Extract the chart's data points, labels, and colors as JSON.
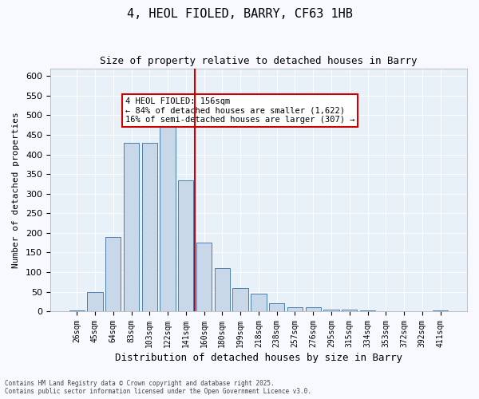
{
  "title": "4, HEOL FIOLED, BARRY, CF63 1HB",
  "subtitle": "Size of property relative to detached houses in Barry",
  "xlabel": "Distribution of detached houses by size in Barry",
  "ylabel": "Number of detached properties",
  "bar_color": "#c8d8e8",
  "bar_edge_color": "#4a7fb0",
  "vline_color": "#cc0000",
  "vline_x": 8,
  "categories": [
    "26sqm",
    "45sqm",
    "64sqm",
    "83sqm",
    "103sqm",
    "122sqm",
    "141sqm",
    "160sqm",
    "180sqm",
    "199sqm",
    "218sqm",
    "238sqm",
    "257sqm",
    "276sqm",
    "295sqm",
    "315sqm",
    "334sqm",
    "353sqm",
    "372sqm",
    "392sqm",
    "411sqm"
  ],
  "values": [
    3,
    50,
    190,
    430,
    430,
    480,
    335,
    175,
    110,
    60,
    45,
    20,
    10,
    10,
    5,
    4,
    2,
    1,
    1,
    0,
    3
  ],
  "annotation_title": "4 HEOL FIOLED: 156sqm",
  "annotation_line1": "← 84% of detached houses are smaller (1,622)",
  "annotation_line2": "16% of semi-detached houses are larger (307) →",
  "annotation_box_color": "#ffffff",
  "annotation_box_edge": "#cc0000",
  "footer_line1": "Contains HM Land Registry data © Crown copyright and database right 2025.",
  "footer_line2": "Contains public sector information licensed under the Open Government Licence v3.0.",
  "background_color": "#e8f0f8",
  "ylim": [
    0,
    620
  ],
  "yticks": [
    0,
    50,
    100,
    150,
    200,
    250,
    300,
    350,
    400,
    450,
    500,
    550,
    600
  ]
}
